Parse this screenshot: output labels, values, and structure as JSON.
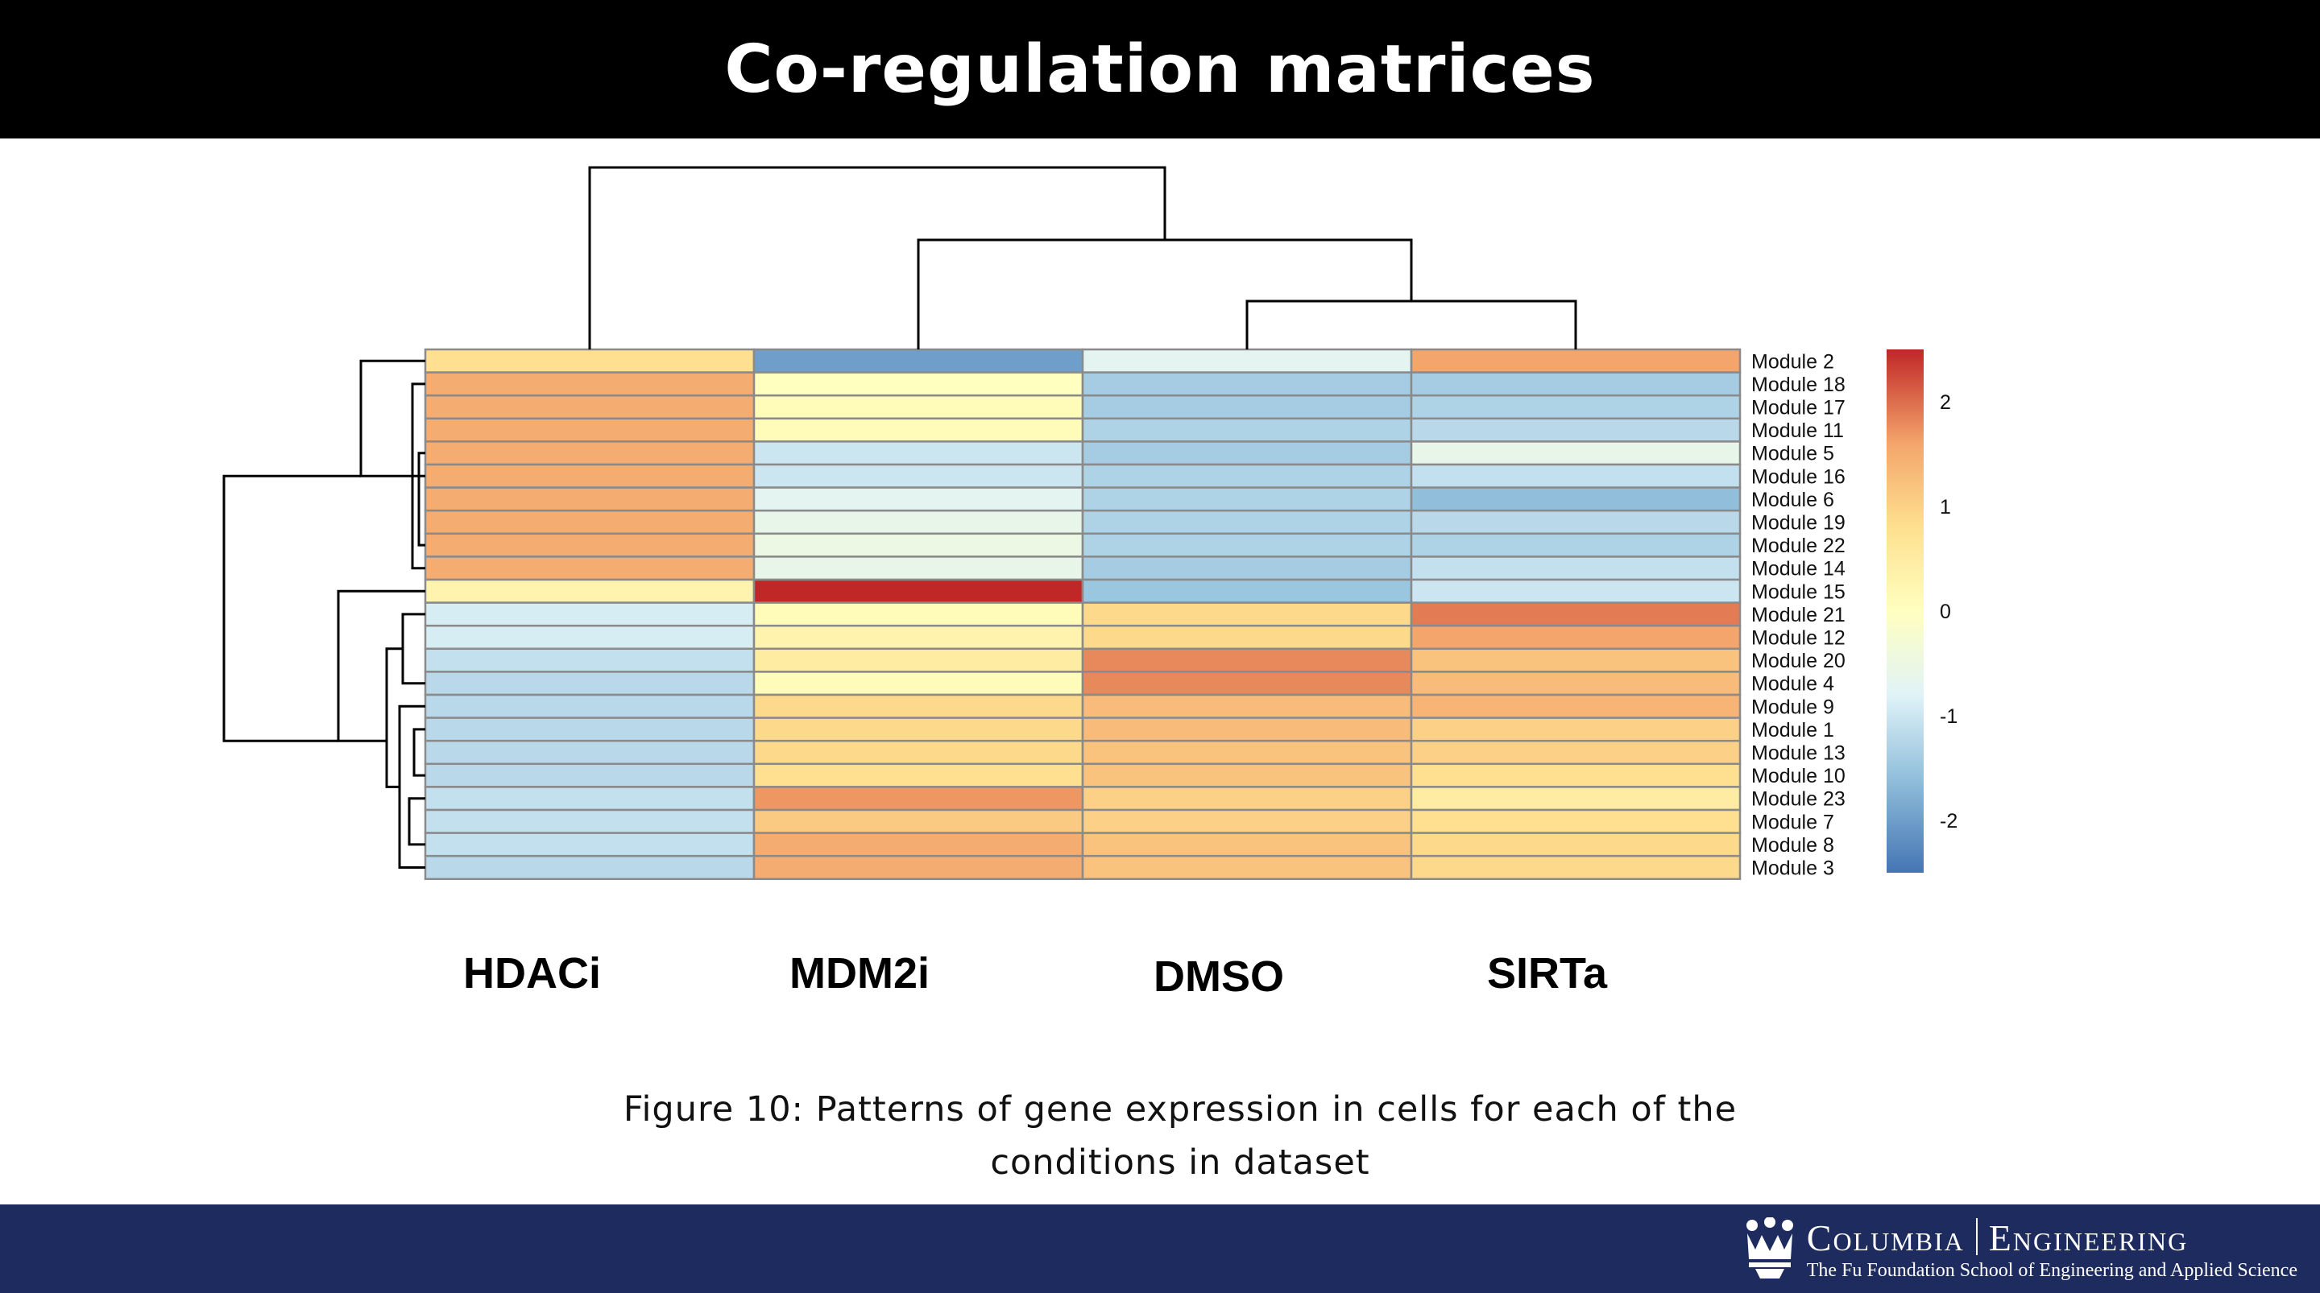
{
  "slide": {
    "title": "Co-regulation matrices",
    "caption_line1": "Figure 10: Patterns of gene expression in cells for each of the",
    "caption_line2": "conditions in dataset"
  },
  "logo": {
    "name_left": "Columbia",
    "name_right": "Engineering",
    "subtitle": "The Fu Foundation School of Engineering and Applied Science"
  },
  "colors": {
    "header_bg": "#000000",
    "footer_bg": "#1e2b5e",
    "scale_low": "#4575b4",
    "scale_mid": "#ffffbf",
    "scale_high": "#d73027"
  },
  "chart_data": {
    "type": "heatmap",
    "columns": [
      "HDACi",
      "MDM2i",
      "DMSO",
      "SIRTa"
    ],
    "rows": [
      "Module 2",
      "Module 18",
      "Module 17",
      "Module 11",
      "Module 5",
      "Module 16",
      "Module 6",
      "Module 19",
      "Module 22",
      "Module 14",
      "Module 15",
      "Module 21",
      "Module 12",
      "Module 20",
      "Module 4",
      "Module 9",
      "Module 1",
      "Module 13",
      "Module 10",
      "Module 23",
      "Module 7",
      "Module 8",
      "Module 3"
    ],
    "values": [
      [
        0.8,
        -2.0,
        -0.7,
        1.6
      ],
      [
        1.5,
        0.0,
        -1.4,
        -1.4
      ],
      [
        1.5,
        0.1,
        -1.4,
        -1.3
      ],
      [
        1.5,
        0.1,
        -1.3,
        -1.2
      ],
      [
        1.5,
        -1.0,
        -1.4,
        -0.6
      ],
      [
        1.5,
        -1.0,
        -1.3,
        -1.1
      ],
      [
        1.5,
        -0.7,
        -1.3,
        -1.6
      ],
      [
        1.5,
        -0.6,
        -1.3,
        -1.2
      ],
      [
        1.5,
        -0.5,
        -1.3,
        -1.3
      ],
      [
        1.5,
        -0.6,
        -1.4,
        -1.1
      ],
      [
        0.3,
        2.5,
        -1.5,
        -1.0
      ],
      [
        -0.9,
        0.1,
        0.9,
        1.9
      ],
      [
        -0.9,
        0.3,
        0.9,
        1.6
      ],
      [
        -1.1,
        0.5,
        1.8,
        1.2
      ],
      [
        -1.2,
        0.1,
        1.8,
        1.3
      ],
      [
        -1.2,
        0.9,
        1.3,
        1.4
      ],
      [
        -1.2,
        0.9,
        1.3,
        1.0
      ],
      [
        -1.2,
        0.9,
        1.2,
        1.0
      ],
      [
        -1.2,
        0.8,
        1.2,
        0.8
      ],
      [
        -1.1,
        1.7,
        1.0,
        0.5
      ],
      [
        -1.1,
        1.1,
        1.0,
        0.8
      ],
      [
        -1.1,
        1.5,
        1.2,
        0.9
      ],
      [
        -1.2,
        1.5,
        1.2,
        0.9
      ]
    ],
    "colorbar_ticks": [
      "2",
      "1",
      "0",
      "-1",
      "-2"
    ],
    "colorbar_range": [
      -2.5,
      2.5
    ],
    "legend": "right"
  }
}
